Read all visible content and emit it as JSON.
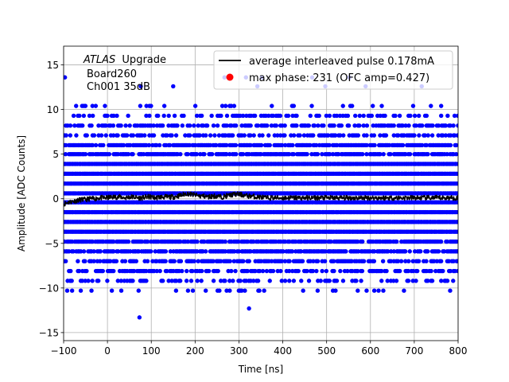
{
  "chart_data": {
    "type": "scatter",
    "xlabel": "Time [ns]",
    "ylabel": "Amplitude [ADC Counts]",
    "xlim": [
      -100,
      800
    ],
    "ylim": [
      -15.9,
      17.1
    ],
    "xticks": [
      "−100",
      "0",
      "100",
      "200",
      "300",
      "400",
      "500",
      "600",
      "700",
      "800"
    ],
    "yticks": [
      "−15",
      "−10",
      "−5",
      "0",
      "5",
      "10",
      "15"
    ],
    "xtick_values": [
      -100,
      0,
      100,
      200,
      300,
      400,
      500,
      600,
      700,
      800
    ],
    "ytick_values": [
      -15,
      -10,
      -5,
      0,
      5,
      10,
      15
    ],
    "grid": true,
    "annotation": {
      "atlas": "ATLAS",
      "upgrade": "Upgrade",
      "board": "Board260",
      "channel": "Ch001 35dB"
    },
    "legend_position": "top-right",
    "series": [
      {
        "name": "average interleaved pulse 0.178mA",
        "kind": "line",
        "color": "#000000",
        "x": [
          -100,
          -90,
          -80,
          -70,
          -60,
          -50,
          -40,
          -30,
          -20,
          -10,
          0,
          10,
          20,
          30,
          40,
          50,
          60,
          70,
          80,
          90,
          100,
          110,
          120,
          130,
          140,
          150,
          160,
          170,
          180,
          190,
          200,
          210,
          220,
          230,
          240,
          250,
          260,
          270,
          280,
          290,
          300,
          310,
          320,
          330,
          340,
          350,
          360,
          370,
          380,
          390,
          400,
          410,
          420,
          430,
          440,
          450,
          460,
          470,
          480,
          490,
          500,
          510,
          520,
          530,
          540,
          550,
          560,
          570,
          580,
          590,
          600,
          610,
          620,
          630,
          640,
          650,
          660,
          670,
          680,
          690,
          700,
          710,
          720,
          730,
          740,
          750,
          760,
          770,
          780,
          790,
          800
        ],
        "y": [
          -0.6,
          -0.4,
          -0.3,
          -0.2,
          -0.1,
          -0.1,
          0.0,
          0.0,
          0.1,
          0.1,
          0.1,
          0.2,
          0.2,
          0.2,
          0.1,
          0.2,
          0.2,
          0.1,
          0.1,
          0.2,
          0.2,
          0.1,
          0.2,
          0.2,
          0.2,
          0.2,
          0.3,
          0.4,
          0.6,
          0.5,
          0.4,
          0.3,
          0.3,
          0.2,
          0.3,
          0.3,
          0.2,
          0.3,
          0.4,
          0.5,
          0.5,
          0.4,
          0.3,
          0.3,
          0.2,
          0.2,
          0.1,
          0.1,
          0.1,
          0.1,
          0.1,
          0.1,
          0.1,
          0.1,
          0.1,
          0.1,
          0.1,
          0.1,
          0.1,
          0.1,
          0.1,
          0.1,
          0.1,
          0.1,
          0.1,
          0.1,
          0.1,
          0.1,
          0.1,
          0.1,
          0.1,
          0.1,
          0.1,
          0.1,
          0.1,
          0.1,
          0.1,
          0.1,
          0.1,
          0.1,
          0.1,
          0.1,
          0.1,
          0.1,
          0.1,
          0.1,
          0.1,
          0.1,
          0.1,
          0.1,
          0.1
        ]
      },
      {
        "name": "max phase: 231 (OFC amp=0.427)",
        "kind": "marker",
        "color": "#ff0000",
        "x": [],
        "y": []
      },
      {
        "name": "",
        "kind": "samples",
        "color": "#0000ff",
        "levels": [
          -12.3,
          -10.3,
          -9.2,
          -8.1,
          -7.0,
          -5.9,
          -4.8,
          -3.7,
          -2.6,
          -1.5,
          -0.4,
          0.6,
          1.7,
          2.8,
          3.9,
          5.0,
          6.0,
          7.1,
          8.2,
          9.3,
          10.4,
          11.4,
          12.5,
          13.6
        ],
        "isolated_points": [
          {
            "x": 10,
            "y": -10.3
          },
          {
            "x": 73,
            "y": -13.3
          },
          {
            "x": 323,
            "y": -12.3
          },
          {
            "x": -97,
            "y": 13.6
          },
          {
            "x": 267,
            "y": 13.6
          },
          {
            "x": 316,
            "y": 13.6
          },
          {
            "x": 352,
            "y": 13.6
          },
          {
            "x": 467,
            "y": 13.6
          },
          {
            "x": 552,
            "y": 13.6
          },
          {
            "x": 76,
            "y": 12.6
          },
          {
            "x": 150,
            "y": 12.6
          },
          {
            "x": 342,
            "y": 12.6
          },
          {
            "x": 497,
            "y": 12.6
          },
          {
            "x": 589,
            "y": 12.6
          },
          {
            "x": 717,
            "y": 12.6
          }
        ]
      }
    ]
  }
}
